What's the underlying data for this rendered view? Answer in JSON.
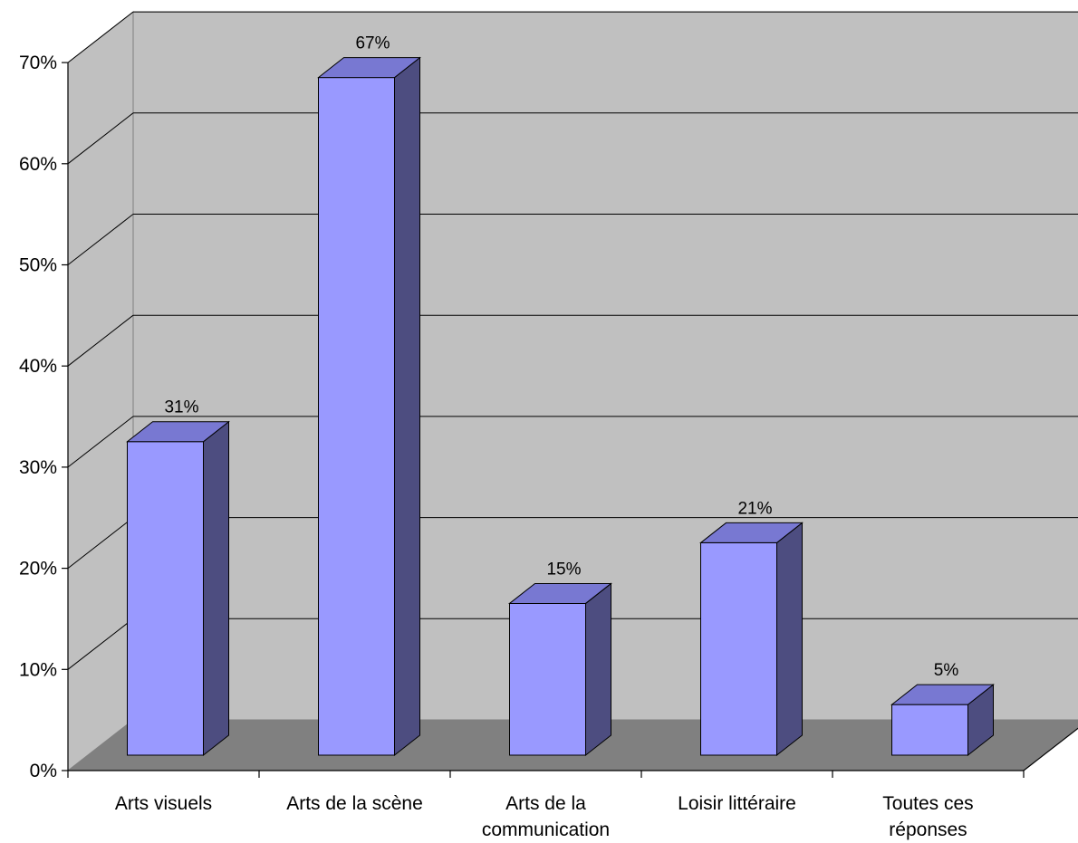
{
  "chart_data": {
    "type": "bar",
    "style": "3d-column",
    "categories": [
      [
        "Arts visuels"
      ],
      [
        "Arts de la scène"
      ],
      [
        "Arts de la",
        "communication"
      ],
      [
        "Loisir littéraire"
      ],
      [
        "Toutes ces",
        "réponses"
      ]
    ],
    "values": [
      31,
      67,
      15,
      21,
      5
    ],
    "data_labels": [
      "31%",
      "67%",
      "15%",
      "21%",
      "5%"
    ],
    "ylim": [
      0,
      70
    ],
    "yticks": [
      0,
      10,
      20,
      30,
      40,
      50,
      60,
      70
    ],
    "ytick_labels": [
      "0%",
      "10%",
      "20%",
      "30%",
      "40%",
      "50%",
      "60%",
      "70%"
    ],
    "title": "",
    "xlabel": "",
    "ylabel": "",
    "grid": true,
    "legend": "none",
    "colors": {
      "bar_front": "#9999ff",
      "bar_top": "#7878d2",
      "bar_side": "#4d4d80",
      "back_wall": "#c0c0c0",
      "side_wall": "#c0c0c0",
      "floor": "#808080",
      "gridline": "#000000",
      "outline": "#000000"
    }
  }
}
